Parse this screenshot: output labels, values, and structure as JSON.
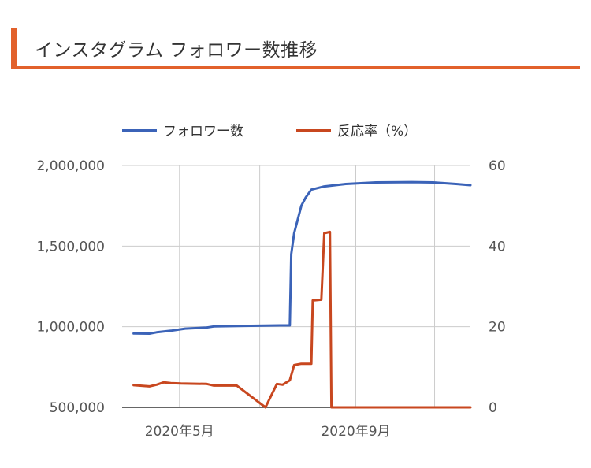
{
  "header": {
    "title": "インスタグラム フォロワー数推移"
  },
  "colors": {
    "accent": "#e2612b",
    "followers": "#3b63b8",
    "engagement": "#c8471f",
    "grid": "#cccccc"
  },
  "chart_data": {
    "type": "line",
    "title": "",
    "legend_position": "top",
    "grid": true,
    "x_axis": {
      "ticks": [
        "2020年5月",
        "2020年9月"
      ]
    },
    "y_axis_left": {
      "range": [
        500000,
        2000000
      ],
      "ticks": [
        "500,000",
        "1,000,000",
        "1,500,000",
        "2,000,000"
      ]
    },
    "y_axis_right": {
      "range": [
        0,
        60
      ],
      "ticks": [
        "0",
        "20",
        "40",
        "60"
      ]
    },
    "series": [
      {
        "name": "フォロワー数",
        "axis": "left",
        "points": [
          [
            "2020-03-30",
            958000
          ],
          [
            "2020-04-10",
            957000
          ],
          [
            "2020-04-15",
            965000
          ],
          [
            "2020-04-25",
            975000
          ],
          [
            "2020-05-05",
            988000
          ],
          [
            "2020-05-20",
            995000
          ],
          [
            "2020-05-25",
            1002000
          ],
          [
            "2020-06-15",
            1005000
          ],
          [
            "2020-07-10",
            1008000
          ],
          [
            "2020-07-17",
            1008000
          ],
          [
            "2020-07-18",
            1450000
          ],
          [
            "2020-07-20",
            1580000
          ],
          [
            "2020-07-25",
            1750000
          ],
          [
            "2020-07-28",
            1800000
          ],
          [
            "2020-08-01",
            1850000
          ],
          [
            "2020-08-10",
            1870000
          ],
          [
            "2020-08-25",
            1885000
          ],
          [
            "2020-09-15",
            1895000
          ],
          [
            "2020-10-10",
            1897000
          ],
          [
            "2020-10-25",
            1895000
          ],
          [
            "2020-11-10",
            1885000
          ],
          [
            "2020-11-20",
            1878000
          ]
        ]
      },
      {
        "name": "反応率（%）",
        "axis": "right",
        "points": [
          [
            "2020-03-30",
            5.5
          ],
          [
            "2020-04-10",
            5.2
          ],
          [
            "2020-04-15",
            5.6
          ],
          [
            "2020-04-20",
            6.2
          ],
          [
            "2020-04-25",
            6.0
          ],
          [
            "2020-05-02",
            5.9
          ],
          [
            "2020-05-20",
            5.8
          ],
          [
            "2020-05-25",
            5.4
          ],
          [
            "2020-06-10",
            5.4
          ],
          [
            "2020-06-30",
            0.0
          ],
          [
            "2020-07-08",
            5.8
          ],
          [
            "2020-07-12",
            5.6
          ],
          [
            "2020-07-17",
            6.7
          ],
          [
            "2020-07-20",
            10.5
          ],
          [
            "2020-07-25",
            10.8
          ],
          [
            "2020-08-01",
            10.8
          ],
          [
            "2020-08-02",
            26.5
          ],
          [
            "2020-08-08",
            26.7
          ],
          [
            "2020-08-10",
            43.2
          ],
          [
            "2020-08-14",
            43.5
          ],
          [
            "2020-08-15",
            0.0
          ],
          [
            "2020-11-20",
            0.0
          ]
        ]
      }
    ]
  }
}
